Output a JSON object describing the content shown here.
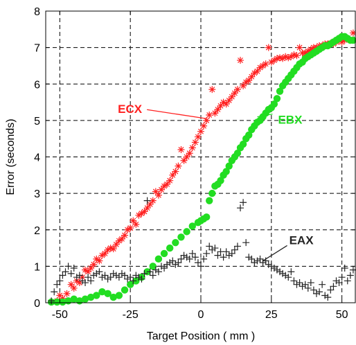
{
  "chart_data": {
    "type": "scatter",
    "title": "",
    "xlabel": "Target Position ( mm )",
    "ylabel": "Error (seconds)",
    "xlim": [
      -55,
      55
    ],
    "ylim": [
      0,
      8
    ],
    "x_ticks": [
      -50,
      -25,
      0,
      25,
      50
    ],
    "x_tick_labels": [
      "-50",
      "-25",
      "0",
      "25",
      "50"
    ],
    "y_ticks": [
      0,
      1,
      2,
      3,
      4,
      5,
      6,
      7,
      8
    ],
    "y_tick_labels": [
      "0",
      "1",
      "2",
      "3",
      "4",
      "5",
      "6",
      "7",
      "8"
    ],
    "grid": true,
    "legend": "none",
    "series": [
      {
        "name": "ECX",
        "marker": "asterisk",
        "color": "#ff2020",
        "points": [
          [
            -53,
            0.02
          ],
          [
            -51,
            0.05
          ],
          [
            -50,
            0.2
          ],
          [
            -49,
            0.12
          ],
          [
            -47.5,
            0.25
          ],
          [
            -46,
            0.5
          ],
          [
            -45,
            0.4
          ],
          [
            -44,
            0.6
          ],
          [
            -43,
            0.55
          ],
          [
            -42,
            0.7
          ],
          [
            -41,
            0.9
          ],
          [
            -40,
            0.85
          ],
          [
            -39,
            0.95
          ],
          [
            -38,
            1.05
          ],
          [
            -37,
            1.2
          ],
          [
            -36,
            1.15
          ],
          [
            -35,
            1.3
          ],
          [
            -34,
            1.35
          ],
          [
            -33,
            1.45
          ],
          [
            -32,
            1.5
          ],
          [
            -31,
            1.48
          ],
          [
            -30,
            1.6
          ],
          [
            -29,
            1.7
          ],
          [
            -28,
            1.75
          ],
          [
            -27,
            1.85
          ],
          [
            -26,
            2.0
          ],
          [
            -25,
            2.05
          ],
          [
            -24,
            2.25
          ],
          [
            -23,
            2.15
          ],
          [
            -22,
            2.4
          ],
          [
            -21,
            2.45
          ],
          [
            -20,
            2.5
          ],
          [
            -19,
            2.6
          ],
          [
            -18,
            2.7
          ],
          [
            -17,
            2.8
          ],
          [
            -16,
            3.05
          ],
          [
            -15,
            2.95
          ],
          [
            -14,
            3.1
          ],
          [
            -13,
            3.2
          ],
          [
            -12,
            3.25
          ],
          [
            -11,
            3.35
          ],
          [
            -10,
            3.5
          ],
          [
            -9,
            3.6
          ],
          [
            -8,
            3.75
          ],
          [
            -7,
            4.2
          ],
          [
            -6,
            3.9
          ],
          [
            -5,
            4.0
          ],
          [
            -4,
            4.1
          ],
          [
            -3,
            4.25
          ],
          [
            -2,
            4.4
          ],
          [
            -1,
            4.55
          ],
          [
            0,
            4.7
          ],
          [
            1,
            4.85
          ],
          [
            2,
            5.0
          ],
          [
            3,
            5.15
          ],
          [
            4,
            5.85
          ],
          [
            5,
            5.2
          ],
          [
            6,
            5.3
          ],
          [
            7,
            5.4
          ],
          [
            8,
            5.5
          ],
          [
            9,
            5.45
          ],
          [
            10,
            5.55
          ],
          [
            11,
            5.65
          ],
          [
            12,
            5.75
          ],
          [
            13,
            5.85
          ],
          [
            14,
            6.65
          ],
          [
            15,
            5.95
          ],
          [
            16,
            6.05
          ],
          [
            17,
            6.1
          ],
          [
            18,
            6.2
          ],
          [
            19,
            6.3
          ],
          [
            20,
            6.35
          ],
          [
            21,
            6.45
          ],
          [
            22,
            6.5
          ],
          [
            23,
            6.55
          ],
          [
            24,
            7.0
          ],
          [
            25,
            6.6
          ],
          [
            26,
            6.65
          ],
          [
            27,
            6.7
          ],
          [
            28,
            6.72
          ],
          [
            29,
            6.7
          ],
          [
            30,
            6.75
          ],
          [
            31,
            6.72
          ],
          [
            32,
            6.75
          ],
          [
            33,
            6.8
          ],
          [
            34,
            6.78
          ],
          [
            35,
            7.0
          ],
          [
            36,
            6.85
          ],
          [
            37,
            6.85
          ],
          [
            38,
            6.9
          ],
          [
            39,
            6.95
          ],
          [
            40,
            7.0
          ],
          [
            41,
            7.0
          ],
          [
            42,
            7.05
          ],
          [
            43,
            7.05
          ],
          [
            44,
            7.1
          ],
          [
            45,
            7.1
          ],
          [
            46,
            7.12
          ],
          [
            47,
            7.1
          ],
          [
            48,
            7.15
          ],
          [
            49,
            7.2
          ],
          [
            50,
            7.15
          ],
          [
            51,
            7.2
          ],
          [
            52,
            7.25
          ],
          [
            53,
            7.2
          ],
          [
            54,
            7.4
          ]
        ]
      },
      {
        "name": "EBX",
        "marker": "filled-circle",
        "color": "#22dd22",
        "points": [
          [
            -53,
            0.02
          ],
          [
            -51,
            0.02
          ],
          [
            -49,
            0.02
          ],
          [
            -47,
            0.05
          ],
          [
            -45,
            0.1
          ],
          [
            -43,
            0.05
          ],
          [
            -41,
            0.1
          ],
          [
            -39,
            0.15
          ],
          [
            -37,
            0.2
          ],
          [
            -35,
            0.3
          ],
          [
            -33,
            0.25
          ],
          [
            -31,
            0.15
          ],
          [
            -29,
            0.2
          ],
          [
            -27,
            0.35
          ],
          [
            -25,
            0.5
          ],
          [
            -23,
            0.6
          ],
          [
            -21,
            0.7
          ],
          [
            -19,
            0.85
          ],
          [
            -17,
            1.0
          ],
          [
            -15,
            1.2
          ],
          [
            -13,
            1.35
          ],
          [
            -11,
            1.5
          ],
          [
            -9,
            1.65
          ],
          [
            -7,
            1.8
          ],
          [
            -5,
            1.95
          ],
          [
            -3,
            2.1
          ],
          [
            -1,
            2.2
          ],
          [
            0,
            2.25
          ],
          [
            1,
            2.3
          ],
          [
            2,
            2.35
          ],
          [
            3,
            2.8
          ],
          [
            4,
            3.0
          ],
          [
            5,
            3.2
          ],
          [
            6,
            3.25
          ],
          [
            7,
            3.35
          ],
          [
            8,
            3.5
          ],
          [
            9,
            3.6
          ],
          [
            10,
            3.75
          ],
          [
            11,
            3.9
          ],
          [
            12,
            4.0
          ],
          [
            13,
            4.1
          ],
          [
            14,
            4.25
          ],
          [
            15,
            4.35
          ],
          [
            16,
            4.5
          ],
          [
            17,
            4.6
          ],
          [
            18,
            4.75
          ],
          [
            19,
            4.85
          ],
          [
            20,
            4.95
          ],
          [
            21,
            5.0
          ],
          [
            22,
            5.1
          ],
          [
            23,
            5.2
          ],
          [
            24,
            5.3
          ],
          [
            25,
            5.35
          ],
          [
            26,
            5.45
          ],
          [
            27,
            5.6
          ],
          [
            28,
            5.8
          ],
          [
            29,
            5.95
          ],
          [
            30,
            6.05
          ],
          [
            31,
            6.15
          ],
          [
            32,
            6.25
          ],
          [
            33,
            6.35
          ],
          [
            34,
            6.45
          ],
          [
            35,
            6.55
          ],
          [
            36,
            6.6
          ],
          [
            37,
            6.7
          ],
          [
            38,
            6.75
          ],
          [
            39,
            6.8
          ],
          [
            40,
            6.85
          ],
          [
            41,
            6.9
          ],
          [
            42,
            6.95
          ],
          [
            43,
            7.0
          ],
          [
            44,
            7.05
          ],
          [
            45,
            7.05
          ],
          [
            46,
            7.1
          ],
          [
            47,
            7.15
          ],
          [
            48,
            7.2
          ],
          [
            49,
            7.25
          ],
          [
            50,
            7.3
          ],
          [
            51,
            7.3
          ],
          [
            52,
            7.25
          ],
          [
            53,
            7.2
          ],
          [
            54,
            7.2
          ]
        ]
      },
      {
        "name": "EAX",
        "marker": "plus",
        "color": "#222222",
        "points": [
          [
            -53,
            0.05
          ],
          [
            -52,
            0.3
          ],
          [
            -51,
            0.5
          ],
          [
            -50,
            0.6
          ],
          [
            -49,
            0.75
          ],
          [
            -48,
            0.85
          ],
          [
            -47,
            1.0
          ],
          [
            -46,
            0.8
          ],
          [
            -45,
            0.95
          ],
          [
            -44,
            0.7
          ],
          [
            -43,
            0.75
          ],
          [
            -42,
            0.6
          ],
          [
            -41,
            0.55
          ],
          [
            -40,
            0.7
          ],
          [
            -39,
            0.6
          ],
          [
            -38,
            0.75
          ],
          [
            -37,
            0.8
          ],
          [
            -36,
            0.85
          ],
          [
            -35,
            0.7
          ],
          [
            -34,
            0.75
          ],
          [
            -33,
            0.65
          ],
          [
            -32,
            0.7
          ],
          [
            -31,
            0.8
          ],
          [
            -30,
            0.75
          ],
          [
            -29,
            0.7
          ],
          [
            -28,
            0.8
          ],
          [
            -27,
            0.75
          ],
          [
            -26,
            0.65
          ],
          [
            -25,
            0.7
          ],
          [
            -24,
            0.6
          ],
          [
            -23,
            0.75
          ],
          [
            -22,
            0.7
          ],
          [
            -21,
            0.65
          ],
          [
            -20,
            0.8
          ],
          [
            -19,
            2.8
          ],
          [
            -18,
            0.85
          ],
          [
            -17,
            0.75
          ],
          [
            -16,
            0.9
          ],
          [
            -15,
            0.85
          ],
          [
            -14,
            1.0
          ],
          [
            -13,
            0.95
          ],
          [
            -12,
            1.05
          ],
          [
            -11,
            1.1
          ],
          [
            -10,
            1.15
          ],
          [
            -9,
            1.05
          ],
          [
            -8,
            1.1
          ],
          [
            -7,
            1.2
          ],
          [
            -6,
            1.3
          ],
          [
            -5,
            1.25
          ],
          [
            -4,
            1.2
          ],
          [
            -3,
            1.35
          ],
          [
            -2,
            1.25
          ],
          [
            -1,
            1.1
          ],
          [
            0,
            1.0
          ],
          [
            1,
            1.2
          ],
          [
            2,
            1.35
          ],
          [
            3,
            1.55
          ],
          [
            4,
            1.45
          ],
          [
            5,
            1.5
          ],
          [
            6,
            1.3
          ],
          [
            7,
            1.4
          ],
          [
            8,
            1.25
          ],
          [
            9,
            1.4
          ],
          [
            10,
            1.3
          ],
          [
            11,
            1.35
          ],
          [
            12,
            1.45
          ],
          [
            13,
            1.55
          ],
          [
            14,
            2.6
          ],
          [
            15,
            2.75
          ],
          [
            16,
            1.65
          ],
          [
            17,
            1.25
          ],
          [
            18,
            1.2
          ],
          [
            19,
            1.1
          ],
          [
            20,
            1.15
          ],
          [
            21,
            1.2
          ],
          [
            22,
            1.1
          ],
          [
            23,
            1.15
          ],
          [
            24,
            1.05
          ],
          [
            25,
            1.0
          ],
          [
            26,
            0.95
          ],
          [
            27,
            0.9
          ],
          [
            28,
            0.85
          ],
          [
            29,
            0.8
          ],
          [
            30,
            0.75
          ],
          [
            31,
            0.7
          ],
          [
            32,
            0.85
          ],
          [
            33,
            0.6
          ],
          [
            34,
            0.5
          ],
          [
            35,
            0.55
          ],
          [
            36,
            0.45
          ],
          [
            37,
            0.5
          ],
          [
            38,
            0.4
          ],
          [
            39,
            0.55
          ],
          [
            40,
            0.35
          ],
          [
            41,
            0.25
          ],
          [
            42,
            0.3
          ],
          [
            43,
            0.5
          ],
          [
            44,
            0.2
          ],
          [
            45,
            0.15
          ],
          [
            46,
            0.35
          ],
          [
            47,
            0.45
          ],
          [
            48,
            0.6
          ],
          [
            49,
            0.55
          ],
          [
            50,
            0.7
          ],
          [
            51,
            0.95
          ],
          [
            52,
            0.6
          ],
          [
            53,
            0.75
          ],
          [
            54,
            0.9
          ]
        ]
      }
    ],
    "annotations": [
      {
        "text": "ECX",
        "color": "#ff2020",
        "anchor_x": 2,
        "anchor_y": 5.05
      },
      {
        "text": "EBX",
        "color": "#22dd22",
        "anchor_x": 20,
        "anchor_y": 5.1
      },
      {
        "text": "EAX",
        "color": "#222222",
        "anchor_x": 22,
        "anchor_y": 1.15
      }
    ]
  }
}
